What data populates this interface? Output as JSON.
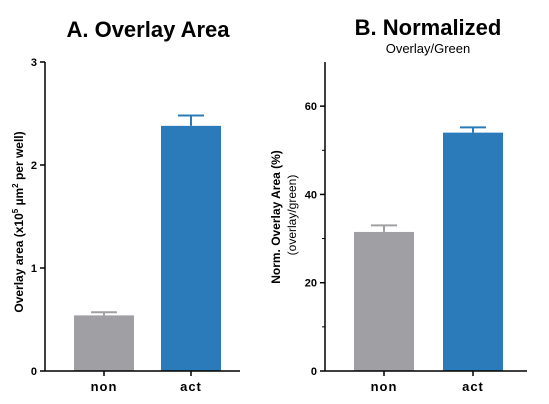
{
  "chart_data": [
    {
      "type": "bar",
      "title": "A. Overlay Area",
      "subtitle": "",
      "ylabel": {
        "pre": "Overlay area (x10",
        "sup1": "5",
        "mid": " µm",
        "sup2": "2",
        "post": " per well)"
      },
      "ylabel_secondary": "",
      "categories": [
        "non",
        "act"
      ],
      "values": [
        0.54,
        2.38
      ],
      "errors": [
        0.03,
        0.1
      ],
      "colors": [
        "#a0a0a4",
        "#2b7bba"
      ],
      "ylim": [
        0,
        3
      ],
      "yticks": [
        0,
        1,
        2,
        3
      ],
      "grid": false
    },
    {
      "type": "bar",
      "title": "B. Normalized",
      "subtitle": "Overlay/Green",
      "ylabel": "Norm. Overlay Area (%)",
      "ylabel_secondary": "(overlay/green)",
      "categories": [
        "non",
        "act"
      ],
      "values": [
        31.5,
        54.0
      ],
      "errors": [
        1.5,
        1.2
      ],
      "colors": [
        "#a0a0a4",
        "#2b7bba"
      ],
      "ylim": [
        0,
        70
      ],
      "yticks": [
        0,
        20,
        40,
        60
      ],
      "grid": false
    }
  ]
}
